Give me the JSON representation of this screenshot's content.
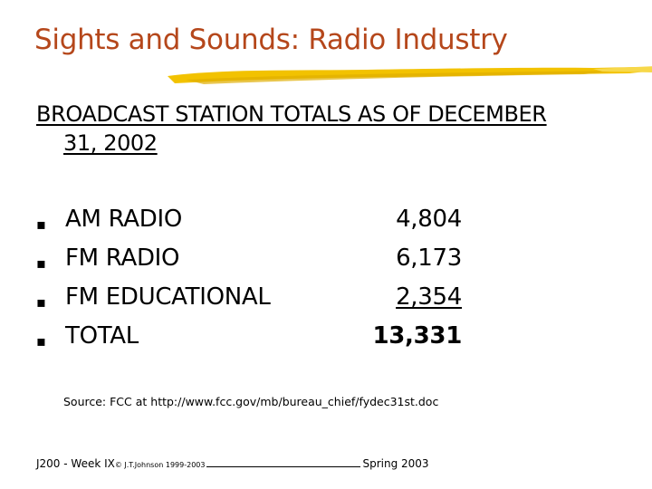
{
  "slide": {
    "title": "Sights and Sounds: Radio Industry",
    "heading_line1": "BROADCAST STATION TOTALS AS OF DECEMBER",
    "heading_line2": "31, 2002",
    "rows": [
      {
        "label": "AM RADIO",
        "value": "4,804"
      },
      {
        "label": "FM RADIO",
        "value": "6,173"
      },
      {
        "label": "FM EDUCATIONAL",
        "value": "2,354"
      },
      {
        "label": "TOTAL",
        "value": "13,331"
      }
    ],
    "source": "Source: FCC at http://www.fcc.gov/mb/bureau_chief/fydec31st.doc",
    "footer_course": "J200 - Week IX",
    "footer_copyright": "© J.T.Johnson 1999-2003",
    "footer_term": "Spring 2003"
  },
  "colors": {
    "title": "#b5471b",
    "brush": "#f2c200"
  },
  "bullet_icon": "square-bullet-icon"
}
